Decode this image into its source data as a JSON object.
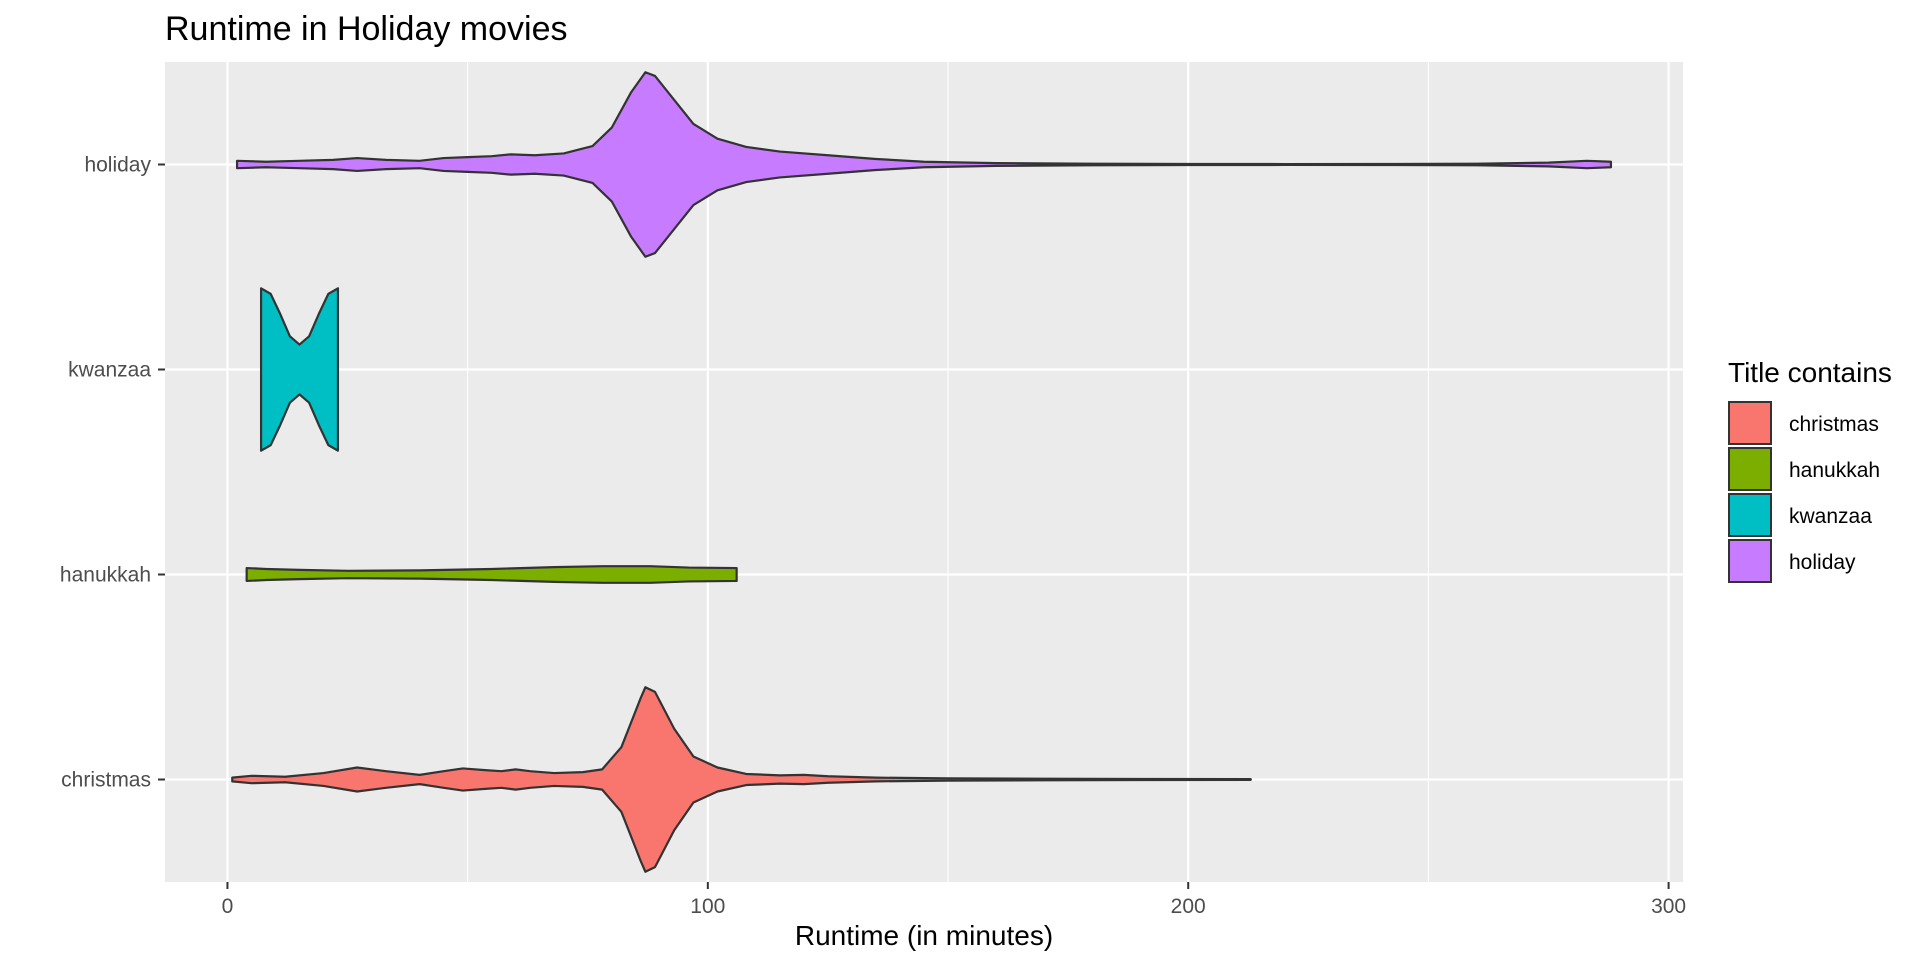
{
  "chart_data": {
    "type": "violin",
    "title": "Runtime in Holiday movies",
    "xlabel": "Runtime (in minutes)",
    "ylabel": "",
    "xlim": [
      -13,
      303
    ],
    "x_ticks": [
      0,
      100,
      200,
      300
    ],
    "x_minor_ticks": [
      50,
      150,
      250
    ],
    "grid": true,
    "orientation": "horizontal",
    "legend": {
      "title": "Title contains",
      "position": "right",
      "entries": [
        "christmas",
        "hanukkah",
        "kwanzaa",
        "holiday"
      ]
    },
    "categories": [
      "christmas",
      "hanukkah",
      "kwanzaa",
      "holiday"
    ],
    "colors": {
      "christmas": "#F8766D",
      "hanukkah": "#7CAE00",
      "kwanzaa": "#00BFC4",
      "holiday": "#C77CFF",
      "panel": "#EBEBEB",
      "grid": "#FFFFFF",
      "outline": "#333333"
    },
    "series": [
      {
        "name": "christmas",
        "min": 1,
        "max": 213,
        "profile": [
          [
            1,
            0.02
          ],
          [
            5,
            0.04
          ],
          [
            12,
            0.03
          ],
          [
            20,
            0.07
          ],
          [
            27,
            0.13
          ],
          [
            33,
            0.09
          ],
          [
            40,
            0.05
          ],
          [
            45,
            0.09
          ],
          [
            49,
            0.12
          ],
          [
            54,
            0.1
          ],
          [
            57,
            0.09
          ],
          [
            60,
            0.11
          ],
          [
            63,
            0.09
          ],
          [
            68,
            0.07
          ],
          [
            74,
            0.08
          ],
          [
            78,
            0.11
          ],
          [
            82,
            0.35
          ],
          [
            86,
            0.88
          ],
          [
            87,
            1.0
          ],
          [
            89,
            0.95
          ],
          [
            93,
            0.55
          ],
          [
            97,
            0.25
          ],
          [
            102,
            0.13
          ],
          [
            108,
            0.06
          ],
          [
            115,
            0.045
          ],
          [
            120,
            0.05
          ],
          [
            125,
            0.035
          ],
          [
            135,
            0.02
          ],
          [
            150,
            0.012
          ],
          [
            170,
            0.008
          ],
          [
            190,
            0.006
          ],
          [
            213,
            0.004
          ]
        ]
      },
      {
        "name": "hanukkah",
        "min": 4,
        "max": 106,
        "profile": [
          [
            4,
            0.07
          ],
          [
            8,
            0.06
          ],
          [
            15,
            0.05
          ],
          [
            25,
            0.04
          ],
          [
            40,
            0.045
          ],
          [
            55,
            0.06
          ],
          [
            68,
            0.08
          ],
          [
            78,
            0.09
          ],
          [
            88,
            0.09
          ],
          [
            96,
            0.075
          ],
          [
            106,
            0.07
          ]
        ]
      },
      {
        "name": "kwanzaa",
        "min": 7,
        "max": 23,
        "profile": [
          [
            7,
            0.88
          ],
          [
            9,
            0.82
          ],
          [
            11,
            0.6
          ],
          [
            13,
            0.36
          ],
          [
            15,
            0.27
          ],
          [
            17,
            0.36
          ],
          [
            19,
            0.6
          ],
          [
            21,
            0.82
          ],
          [
            23,
            0.88
          ]
        ]
      },
      {
        "name": "holiday",
        "min": 2,
        "max": 288,
        "profile": [
          [
            2,
            0.04
          ],
          [
            8,
            0.03
          ],
          [
            15,
            0.04
          ],
          [
            22,
            0.05
          ],
          [
            27,
            0.07
          ],
          [
            33,
            0.05
          ],
          [
            40,
            0.04
          ],
          [
            45,
            0.07
          ],
          [
            50,
            0.08
          ],
          [
            55,
            0.09
          ],
          [
            59,
            0.11
          ],
          [
            64,
            0.1
          ],
          [
            70,
            0.12
          ],
          [
            76,
            0.2
          ],
          [
            80,
            0.4
          ],
          [
            84,
            0.78
          ],
          [
            87,
            1.0
          ],
          [
            89,
            0.96
          ],
          [
            93,
            0.7
          ],
          [
            97,
            0.44
          ],
          [
            102,
            0.28
          ],
          [
            108,
            0.19
          ],
          [
            115,
            0.14
          ],
          [
            125,
            0.1
          ],
          [
            135,
            0.06
          ],
          [
            145,
            0.03
          ],
          [
            160,
            0.015
          ],
          [
            180,
            0.008
          ],
          [
            200,
            0.006
          ],
          [
            220,
            0.005
          ],
          [
            240,
            0.006
          ],
          [
            260,
            0.008
          ],
          [
            275,
            0.02
          ],
          [
            283,
            0.04
          ],
          [
            288,
            0.03
          ]
        ]
      }
    ]
  }
}
